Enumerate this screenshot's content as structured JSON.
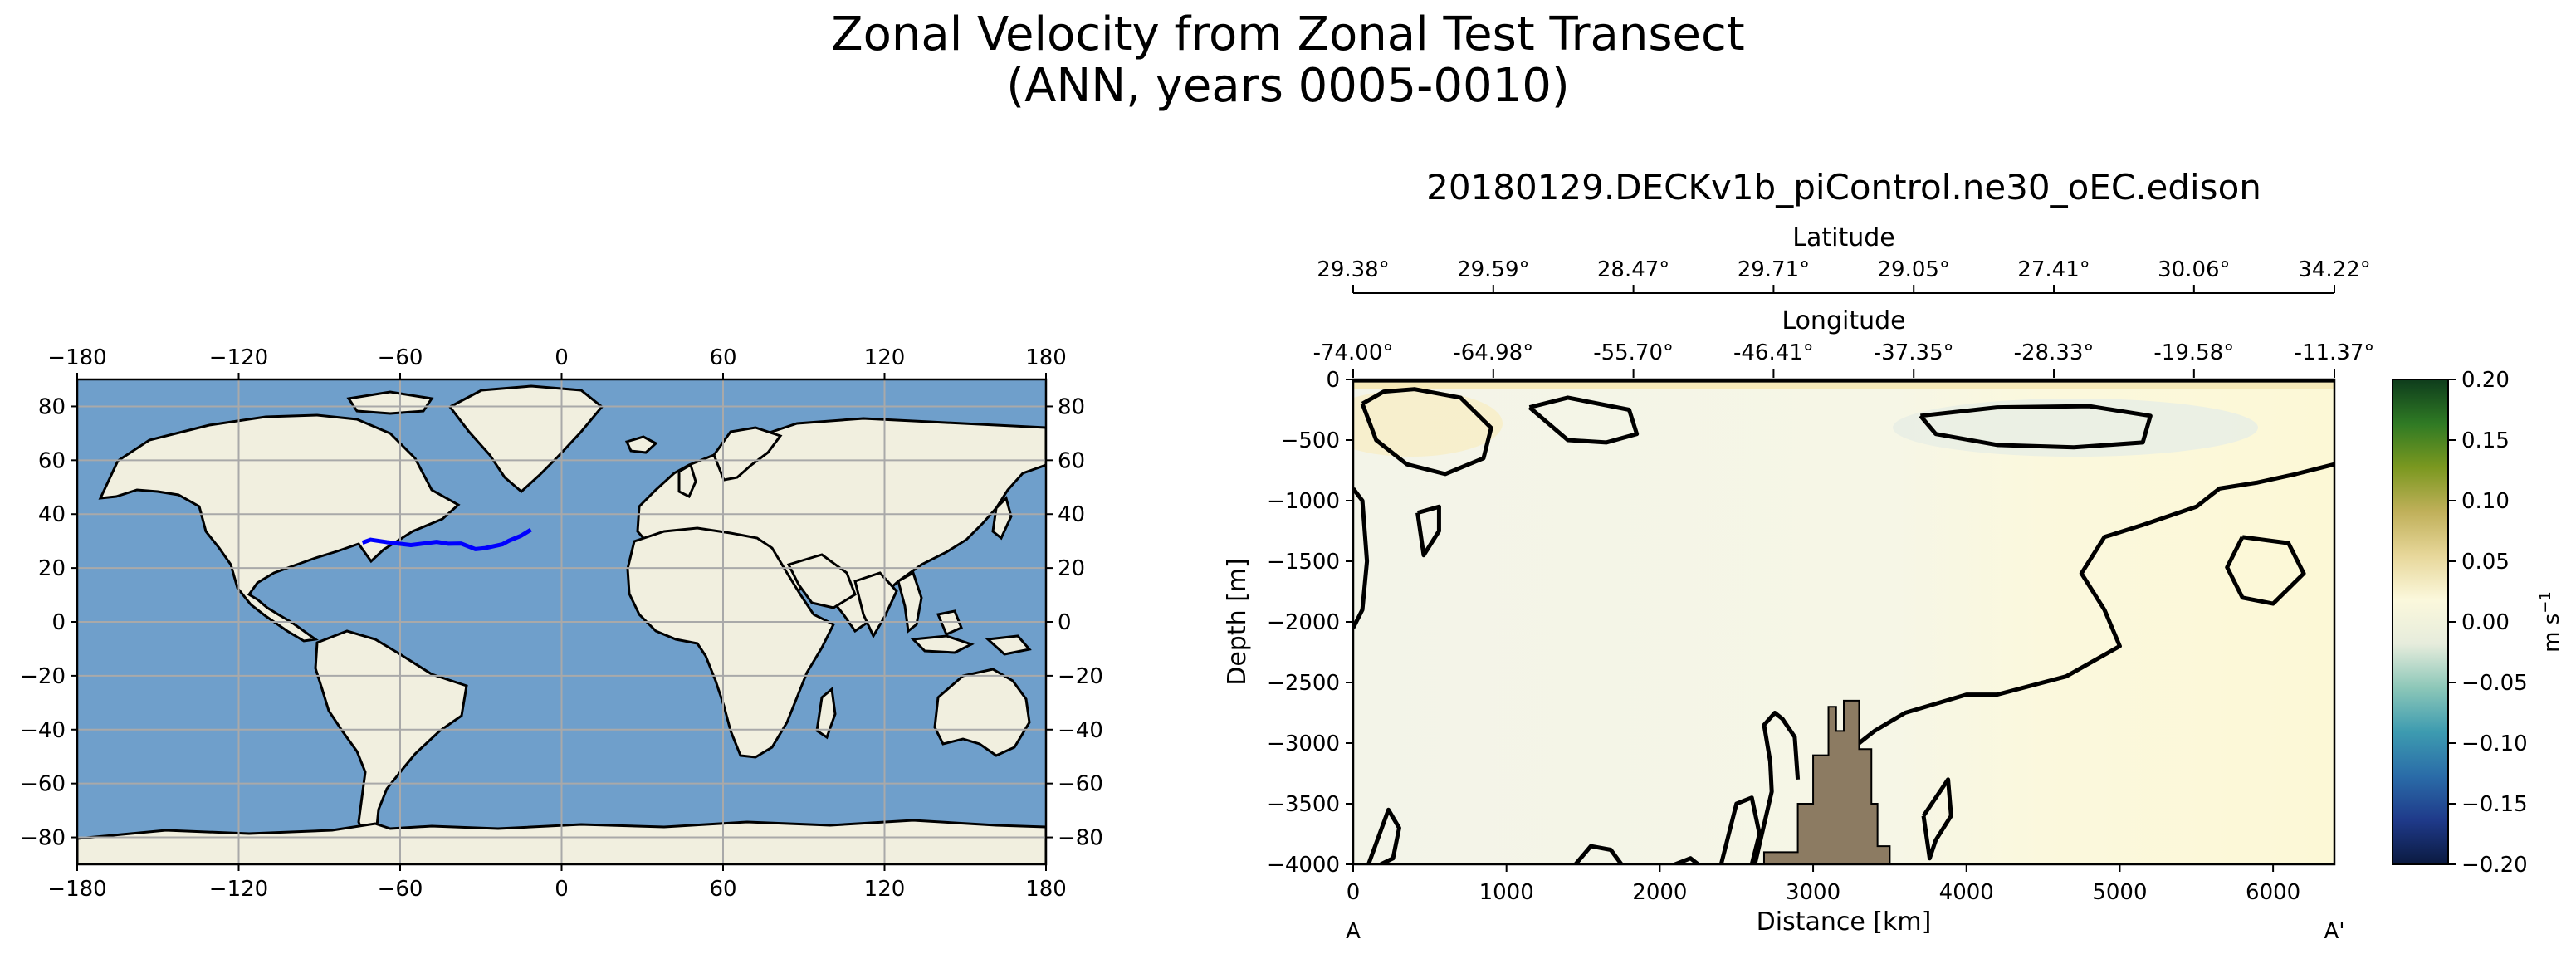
{
  "suptitle_line1": "Zonal Velocity from Zonal Test Transect",
  "suptitle_line2": "(ANN, years 0005-0010)",
  "chart_data": [
    {
      "type": "map",
      "projection": "PlateCarree",
      "xlim": [
        -180,
        180
      ],
      "ylim": [
        -90,
        90
      ],
      "x_ticks": [
        "−180",
        "−120",
        "−60",
        "0",
        "60",
        "120",
        "180"
      ],
      "x_tick_values": [
        -180,
        -120,
        -60,
        0,
        60,
        120,
        180
      ],
      "y_ticks": [
        "80",
        "60",
        "40",
        "20",
        "0",
        "−20",
        "−40",
        "−60",
        "−80"
      ],
      "y_tick_values": [
        80,
        60,
        40,
        20,
        0,
        -20,
        -40,
        -60,
        -80
      ],
      "grid": true,
      "ocean_color": "#6f9fcb",
      "land_color": "#f1efdf",
      "transect_color": "#0000ff",
      "transect": {
        "lon": [
          -74.0,
          -71.0,
          -65.0,
          -56.0,
          -46.4,
          -42.0,
          -37.4,
          -32.0,
          -28.3,
          -22.0,
          -19.6,
          -15.0,
          -11.4
        ],
        "lat": [
          29.4,
          30.5,
          29.6,
          28.5,
          29.7,
          29.0,
          29.1,
          27.0,
          27.4,
          28.8,
          30.1,
          32.0,
          34.2
        ]
      }
    },
    {
      "type": "contourf",
      "title": "20180129.DECKv1b_piControl.ne30_oEC.edison",
      "xlabel": "Distance [km]",
      "ylabel": "Depth [m]",
      "xlim": [
        0,
        6400
      ],
      "ylim": [
        -4000,
        0
      ],
      "x_ticks": [
        "0",
        "1000",
        "2000",
        "3000",
        "4000",
        "5000",
        "6000"
      ],
      "x_tick_values": [
        0,
        1000,
        2000,
        3000,
        4000,
        5000,
        6000
      ],
      "y_ticks": [
        "0",
        "−500",
        "−1000",
        "−1500",
        "−2000",
        "−2500",
        "−3000",
        "−3500",
        "−4000"
      ],
      "y_tick_values": [
        0,
        -500,
        -1000,
        -1500,
        -2000,
        -2500,
        -3000,
        -3500,
        -4000
      ],
      "start_label": "A",
      "end_label": "A'",
      "lat_axis_label": "Latitude",
      "lat_ticks": [
        "29.38°",
        "29.59°",
        "28.47°",
        "29.71°",
        "29.05°",
        "27.41°",
        "30.06°",
        "34.22°"
      ],
      "lon_axis_label": "Longitude",
      "lon_ticks": [
        "-74.00°",
        "-64.98°",
        "-55.70°",
        "-46.41°",
        "-37.35°",
        "-28.33°",
        "-19.58°",
        "-11.37°"
      ],
      "secondary_tick_positions_km": [
        0,
        914,
        1828,
        2742,
        3656,
        4570,
        5484,
        6400
      ],
      "topography_color": "#8c7b62",
      "bottom_topography": {
        "x": [
          2680,
          2680,
          2900,
          2900,
          3000,
          3000,
          3100,
          3100,
          3150,
          3150,
          3200,
          3200,
          3300,
          3300,
          3380,
          3380,
          3420,
          3420,
          3500,
          3500
        ],
        "y": [
          -4000,
          -3900,
          -3900,
          -3500,
          -3500,
          -3100,
          -3100,
          -2700,
          -2700,
          -2900,
          -2900,
          -2650,
          -2650,
          -3050,
          -3050,
          -3500,
          -3500,
          -3850,
          -3850,
          -4000
        ]
      },
      "colorbar": {
        "label": "m s$^{-1}$",
        "label_main": "m s",
        "label_sup": "−1",
        "vmin": -0.2,
        "vmax": 0.2,
        "ticks": [
          "0.20",
          "0.15",
          "0.10",
          "0.05",
          "0.00",
          "−0.05",
          "−0.10",
          "−0.15",
          "−0.20"
        ],
        "tick_values": [
          0.2,
          0.15,
          0.1,
          0.05,
          0.0,
          -0.05,
          -0.1,
          -0.15,
          -0.2
        ],
        "colors": [
          "#0b1a40",
          "#1f3a8a",
          "#2a6ca8",
          "#3d9bb0",
          "#8cc7b8",
          "#e6ecdc",
          "#fbf8dc",
          "#e7d79a",
          "#c0b05a",
          "#7b9820",
          "#2f7a24",
          "#0e3c1c"
        ]
      },
      "contours": [
        {
          "x": [
            60,
            200,
            400,
            700,
            900,
            850,
            600,
            350,
            150,
            60
          ],
          "y": [
            -200,
            -100,
            -80,
            -150,
            -400,
            -650,
            -780,
            -700,
            -500,
            -200
          ]
        },
        {
          "x": [
            1150,
            1400,
            1800,
            1850,
            1650,
            1400,
            1150
          ],
          "y": [
            -230,
            -150,
            -250,
            -450,
            -520,
            -500,
            -230
          ]
        },
        {
          "x": [
            3700,
            4200,
            4800,
            5200,
            5150,
            4700,
            4200,
            3800,
            3700
          ],
          "y": [
            -300,
            -230,
            -220,
            -300,
            -520,
            -560,
            -540,
            -450,
            -300
          ]
        },
        {
          "x": [
            420,
            560,
            560,
            460,
            420
          ],
          "y": [
            -1100,
            -1050,
            -1250,
            -1450,
            -1100
          ]
        },
        {
          "x": [
            0,
            60,
            90,
            60,
            0
          ],
          "y": [
            -900,
            -1000,
            -1500,
            -1900,
            -2050
          ]
        },
        {
          "x": [
            6400,
            6150,
            5900,
            5650,
            5500,
            5150,
            4900,
            4750,
            4900,
            5000,
            4650,
            4200,
            4000,
            3600,
            3400,
            3300
          ],
          "y": [
            -700,
            -780,
            -850,
            -900,
            -1050,
            -1200,
            -1300,
            -1600,
            -1900,
            -2200,
            -2450,
            -2600,
            -2600,
            -2750,
            -2900,
            -3000
          ]
        },
        {
          "x": [
            5800,
            6100,
            6200,
            6000,
            5800,
            5700,
            5800
          ],
          "y": [
            -1300,
            -1350,
            -1600,
            -1850,
            -1800,
            -1550,
            -1300
          ]
        },
        {
          "x": [
            3720,
            3880,
            3900,
            3800,
            3760,
            3720
          ],
          "y": [
            -3600,
            -3300,
            -3600,
            -3800,
            -3950,
            -3600
          ]
        },
        {
          "x": [
            100,
            230,
            300,
            260,
            180
          ],
          "y": [
            -4000,
            -3550,
            -3700,
            -3950,
            -4000
          ]
        },
        {
          "x": [
            2400,
            2500,
            2600,
            2650,
            2600
          ],
          "y": [
            -4000,
            -3500,
            -3450,
            -3750,
            -4000
          ]
        },
        {
          "x": [
            1450,
            1550,
            1680,
            1750
          ],
          "y": [
            -4000,
            -3850,
            -3880,
            -4000
          ]
        },
        {
          "x": [
            2620,
            2730,
            2720,
            2680,
            2750,
            2800,
            2880,
            2900
          ],
          "y": [
            -4000,
            -3400,
            -3150,
            -2850,
            -2750,
            -2800,
            -2950,
            -3300
          ]
        },
        {
          "x": [
            2100,
            2200,
            2250
          ],
          "y": [
            -4000,
            -3950,
            -4000
          ]
        }
      ]
    }
  ]
}
